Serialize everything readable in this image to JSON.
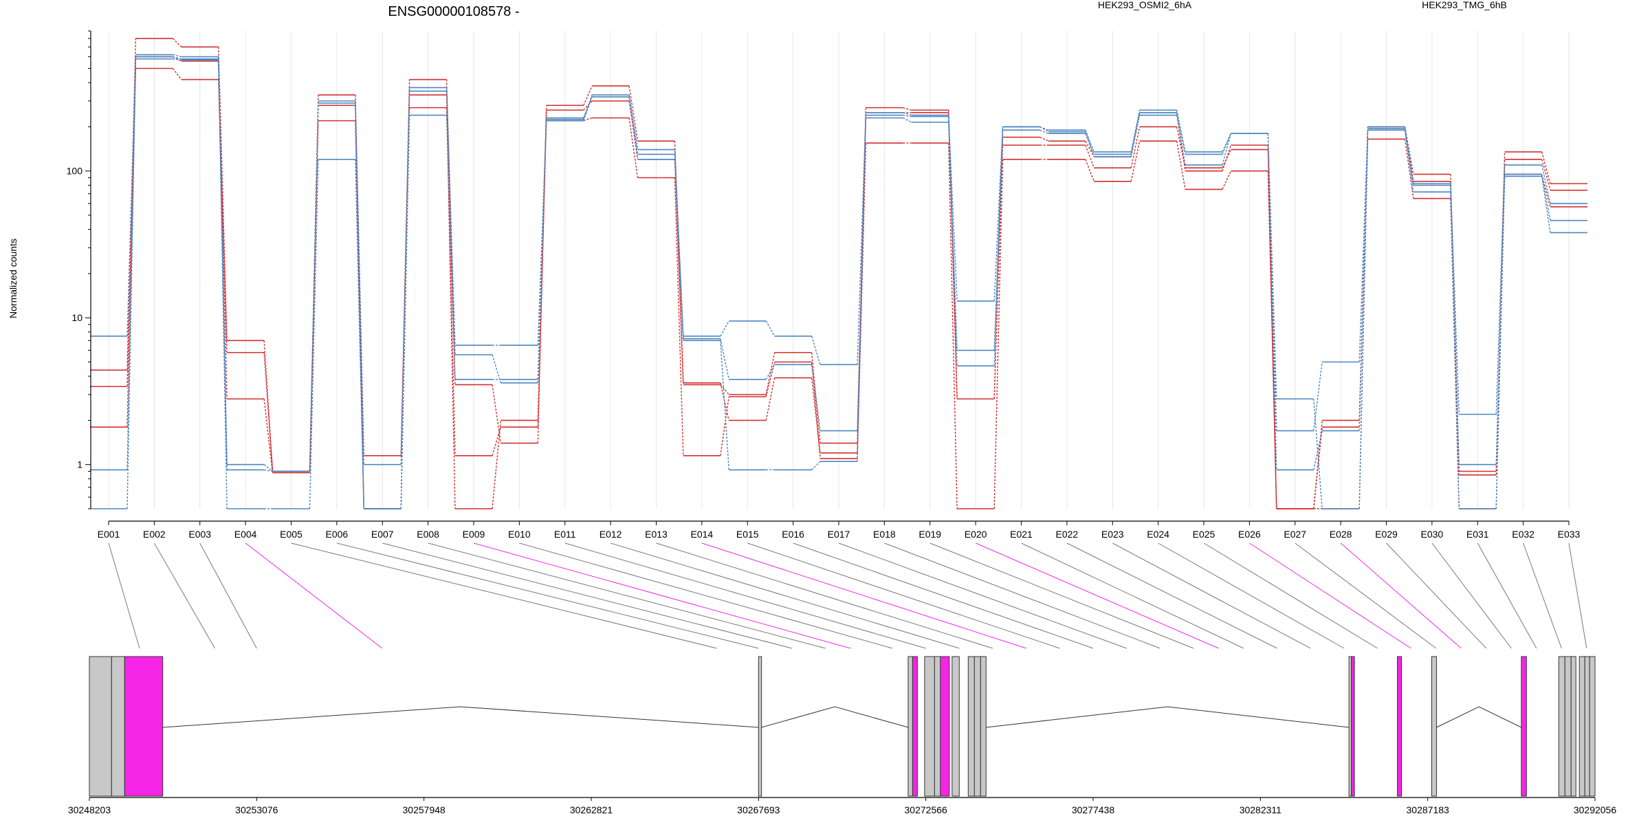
{
  "colors": {
    "cond_a": "#d32f2f",
    "cond_b": "#4a86c0",
    "highlight": "#f425e6",
    "exon_fill": "#c8c8c8",
    "axis": "#000000",
    "grid": "#e6e6e6"
  },
  "chart_data": {
    "type": "line",
    "title": "ENSG00000108578 -",
    "ylabel": "Normalized counts",
    "yscale": "log",
    "ylim": [
      0.5,
      900
    ],
    "yticks": [
      1,
      10,
      100
    ],
    "ytick_labels": [
      "1",
      "10",
      "100"
    ],
    "legend": [
      {
        "name": "HEK293_OSMI2_6hA",
        "color": "#d32f2f"
      },
      {
        "name": "HEK293_TMG_6hB",
        "color": "#4a86c0"
      }
    ],
    "categories": [
      "E001",
      "E002",
      "E003",
      "E004",
      "E005",
      "E006",
      "E007",
      "E008",
      "E009",
      "E010",
      "E011",
      "E012",
      "E013",
      "E014",
      "E015",
      "E016",
      "E017",
      "E018",
      "E019",
      "E020",
      "E021",
      "E022",
      "E023",
      "E024",
      "E025",
      "E026",
      "E027",
      "E028",
      "E029",
      "E030",
      "E031",
      "E032",
      "E033"
    ],
    "highlighted": [
      "E004",
      "E009",
      "E014",
      "E020",
      "E026",
      "E028"
    ],
    "series": [
      {
        "group": "a",
        "values": [
          4.4,
          800,
          700,
          7.0,
          0.9,
          330,
          1.15,
          420,
          3.5,
          1.4,
          280,
          380,
          160,
          3.5,
          3.0,
          5.8,
          1.4,
          270,
          260,
          2.8,
          170,
          160,
          125,
          250,
          100,
          150,
          0.5,
          2.0,
          200,
          95,
          0.9,
          135,
          82
        ]
      },
      {
        "group": "a",
        "values": [
          3.4,
          500,
          420,
          5.8,
          0.9,
          280,
          0.5,
          270,
          1.15,
          1.8,
          260,
          300,
          120,
          3.6,
          2.0,
          3.9,
          1.2,
          250,
          250,
          2.8,
          150,
          150,
          105,
          200,
          105,
          140,
          0.5,
          1.8,
          190,
          85,
          0.85,
          120,
          74
        ]
      },
      {
        "group": "a",
        "values": [
          1.8,
          600,
          560,
          2.8,
          0.88,
          220,
          0.5,
          330,
          0.5,
          2.0,
          220,
          230,
          90,
          1.15,
          2.9,
          5.0,
          1.1,
          155,
          155,
          0.5,
          120,
          120,
          85,
          160,
          75,
          100,
          0.5,
          0.5,
          165,
          65,
          0.5,
          95,
          57
        ]
      },
      {
        "group": "b",
        "values": [
          7.5,
          620,
          600,
          1.0,
          0.9,
          300,
          1.0,
          370,
          6.5,
          6.5,
          225,
          330,
          140,
          7.5,
          9.5,
          7.5,
          4.8,
          250,
          240,
          13.0,
          200,
          190,
          135,
          260,
          135,
          180,
          1.7,
          5.0,
          200,
          82,
          2.2,
          110,
          60
        ]
      },
      {
        "group": "b",
        "values": [
          0.92,
          600,
          580,
          0.92,
          0.9,
          290,
          0.5,
          350,
          5.6,
          3.6,
          230,
          320,
          130,
          7.2,
          3.8,
          4.8,
          1.7,
          240,
          235,
          6.0,
          200,
          185,
          130,
          250,
          130,
          180,
          0.92,
          1.7,
          195,
          80,
          1.0,
          95,
          46
        ]
      },
      {
        "group": "b",
        "values": [
          0.5,
          580,
          570,
          0.5,
          0.5,
          120,
          0.5,
          240,
          3.8,
          3.8,
          220,
          320,
          120,
          7.0,
          0.92,
          0.92,
          1.05,
          230,
          215,
          4.7,
          190,
          180,
          125,
          240,
          110,
          180,
          2.8,
          0.5,
          190,
          72,
          0.5,
          92,
          38
        ]
      }
    ],
    "x_genomic_ticks": [
      "30248203",
      "30253076",
      "30257948",
      "30262821",
      "30267693",
      "30272566",
      "30277438",
      "30282311",
      "30287183",
      "30292056"
    ]
  }
}
